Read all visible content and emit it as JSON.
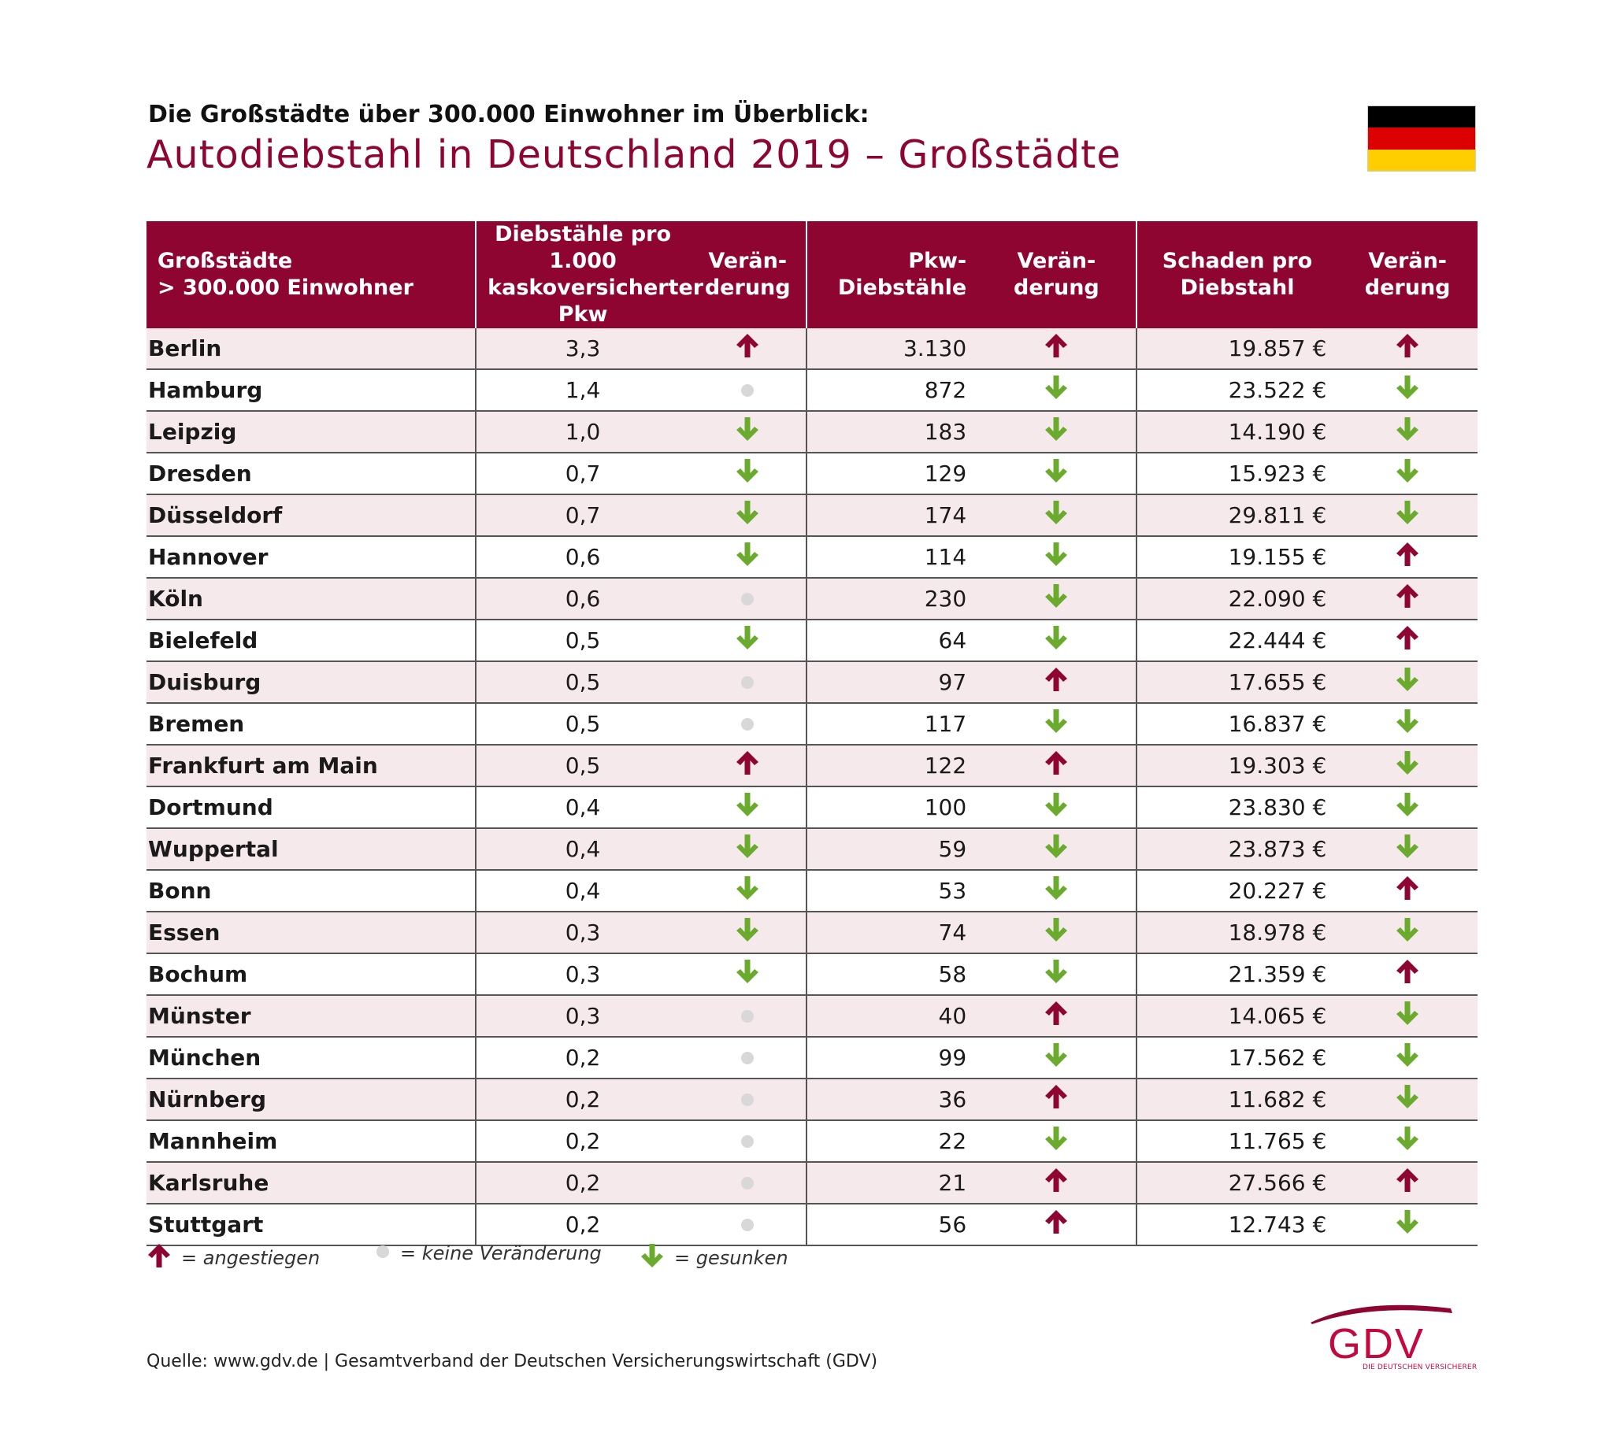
{
  "header": {
    "subtitle": "Die Großstädte über 300.000 Einwohner im Überblick:",
    "title": "Autodiebstahl in Deutschland 2019 – Großstädte"
  },
  "flag": {
    "colors": [
      "#000000",
      "#dd0000",
      "#ffce00"
    ]
  },
  "colors": {
    "header_bg": "#8e0531",
    "row_alt": "#f6e9ec",
    "up": "#8e0531",
    "down": "#6aab2e",
    "same": "#d8d8d8"
  },
  "chart_data": {
    "type": "table",
    "title": "Autodiebstahl in Deutschland 2019 – Großstädte",
    "columns": [
      [
        "Großstädte",
        "> 300.000 Einwohner"
      ],
      [
        "Diebstähle pro 1.000",
        "kaskoversicherter Pkw"
      ],
      [
        "Verän-",
        "derung"
      ],
      [
        "Pkw-",
        "Diebstähle"
      ],
      [
        "Verän-",
        "derung"
      ],
      [
        "Schaden pro",
        "Diebstahl"
      ],
      [
        "Verän-",
        "derung"
      ]
    ],
    "rows": [
      {
        "city": "Berlin",
        "rate": "3,3",
        "rate_trend": "up",
        "thefts": "3.130",
        "thefts_trend": "up",
        "damage": "19.857 €",
        "damage_trend": "up"
      },
      {
        "city": "Hamburg",
        "rate": "1,4",
        "rate_trend": "same",
        "thefts": "872",
        "thefts_trend": "down",
        "damage": "23.522 €",
        "damage_trend": "down"
      },
      {
        "city": "Leipzig",
        "rate": "1,0",
        "rate_trend": "down",
        "thefts": "183",
        "thefts_trend": "down",
        "damage": "14.190 €",
        "damage_trend": "down"
      },
      {
        "city": "Dresden",
        "rate": "0,7",
        "rate_trend": "down",
        "thefts": "129",
        "thefts_trend": "down",
        "damage": "15.923 €",
        "damage_trend": "down"
      },
      {
        "city": "Düsseldorf",
        "rate": "0,7",
        "rate_trend": "down",
        "thefts": "174",
        "thefts_trend": "down",
        "damage": "29.811 €",
        "damage_trend": "down"
      },
      {
        "city": "Hannover",
        "rate": "0,6",
        "rate_trend": "down",
        "thefts": "114",
        "thefts_trend": "down",
        "damage": "19.155 €",
        "damage_trend": "up"
      },
      {
        "city": "Köln",
        "rate": "0,6",
        "rate_trend": "same",
        "thefts": "230",
        "thefts_trend": "down",
        "damage": "22.090 €",
        "damage_trend": "up"
      },
      {
        "city": "Bielefeld",
        "rate": "0,5",
        "rate_trend": "down",
        "thefts": "64",
        "thefts_trend": "down",
        "damage": "22.444 €",
        "damage_trend": "up"
      },
      {
        "city": "Duisburg",
        "rate": "0,5",
        "rate_trend": "same",
        "thefts": "97",
        "thefts_trend": "up",
        "damage": "17.655 €",
        "damage_trend": "down"
      },
      {
        "city": "Bremen",
        "rate": "0,5",
        "rate_trend": "same",
        "thefts": "117",
        "thefts_trend": "down",
        "damage": "16.837 €",
        "damage_trend": "down"
      },
      {
        "city": "Frankfurt am Main",
        "rate": "0,5",
        "rate_trend": "up",
        "thefts": "122",
        "thefts_trend": "up",
        "damage": "19.303 €",
        "damage_trend": "down"
      },
      {
        "city": "Dortmund",
        "rate": "0,4",
        "rate_trend": "down",
        "thefts": "100",
        "thefts_trend": "down",
        "damage": "23.830 €",
        "damage_trend": "down"
      },
      {
        "city": "Wuppertal",
        "rate": "0,4",
        "rate_trend": "down",
        "thefts": "59",
        "thefts_trend": "down",
        "damage": "23.873 €",
        "damage_trend": "down"
      },
      {
        "city": "Bonn",
        "rate": "0,4",
        "rate_trend": "down",
        "thefts": "53",
        "thefts_trend": "down",
        "damage": "20.227 €",
        "damage_trend": "up"
      },
      {
        "city": "Essen",
        "rate": "0,3",
        "rate_trend": "down",
        "thefts": "74",
        "thefts_trend": "down",
        "damage": "18.978 €",
        "damage_trend": "down"
      },
      {
        "city": "Bochum",
        "rate": "0,3",
        "rate_trend": "down",
        "thefts": "58",
        "thefts_trend": "down",
        "damage": "21.359 €",
        "damage_trend": "up"
      },
      {
        "city": "Münster",
        "rate": "0,3",
        "rate_trend": "same",
        "thefts": "40",
        "thefts_trend": "up",
        "damage": "14.065 €",
        "damage_trend": "down"
      },
      {
        "city": "München",
        "rate": "0,2",
        "rate_trend": "same",
        "thefts": "99",
        "thefts_trend": "down",
        "damage": "17.562 €",
        "damage_trend": "down"
      },
      {
        "city": "Nürnberg",
        "rate": "0,2",
        "rate_trend": "same",
        "thefts": "36",
        "thefts_trend": "up",
        "damage": "11.682 €",
        "damage_trend": "down"
      },
      {
        "city": "Mannheim",
        "rate": "0,2",
        "rate_trend": "same",
        "thefts": "22",
        "thefts_trend": "down",
        "damage": "11.765 €",
        "damage_trend": "down"
      },
      {
        "city": "Karlsruhe",
        "rate": "0,2",
        "rate_trend": "same",
        "thefts": "21",
        "thefts_trend": "up",
        "damage": "27.566 €",
        "damage_trend": "up"
      },
      {
        "city": "Stuttgart",
        "rate": "0,2",
        "rate_trend": "same",
        "thefts": "56",
        "thefts_trend": "up",
        "damage": "12.743 €",
        "damage_trend": "down"
      }
    ]
  },
  "legend": {
    "up": "= angestiegen",
    "same": "= keine Veränderung",
    "down": "= gesunken"
  },
  "footer": {
    "source": "Quelle: www.gdv.de | Gesamtverband der Deutschen Versicherungswirtschaft (GDV)",
    "logo_text": "GDV",
    "logo_tagline": "DIE DEUTSCHEN VERSICHERER"
  }
}
